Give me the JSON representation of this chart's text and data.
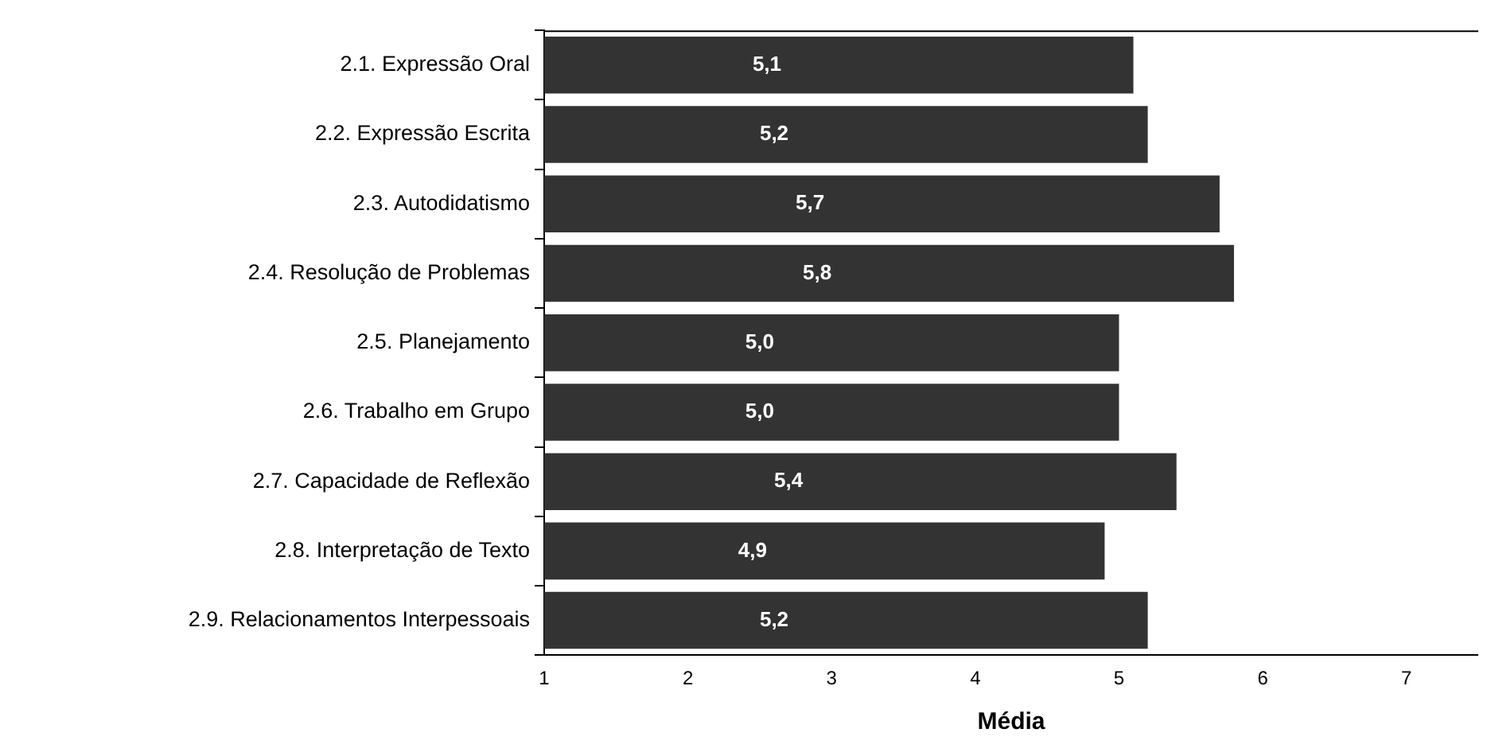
{
  "chart_data": {
    "type": "bar",
    "orientation": "horizontal",
    "xlabel": "Média",
    "categories": [
      "2.1. Expressão Oral",
      "2.2. Expressão Escrita",
      "2.3. Autodidatismo",
      "2.4. Resolução de Problemas",
      "2.5. Planejamento",
      "2.6. Trabalho em Grupo",
      "2.7. Capacidade de Reflexão",
      "2.8. Interpretação de Texto",
      "2.9. Relacionamentos Interpessoais"
    ],
    "values": [
      5.1,
      5.2,
      5.7,
      5.8,
      5.0,
      5.0,
      5.4,
      4.9,
      5.2
    ],
    "value_labels": [
      "5,1",
      "5,2",
      "5,7",
      "5,8",
      "5,0",
      "5,0",
      "5,4",
      "4,9",
      "5,2"
    ],
    "color": "#333333",
    "xlim": [
      1,
      7.5
    ],
    "xticks": [
      1,
      2,
      3,
      4,
      5,
      6,
      7
    ],
    "grid": false,
    "legend": false
  }
}
